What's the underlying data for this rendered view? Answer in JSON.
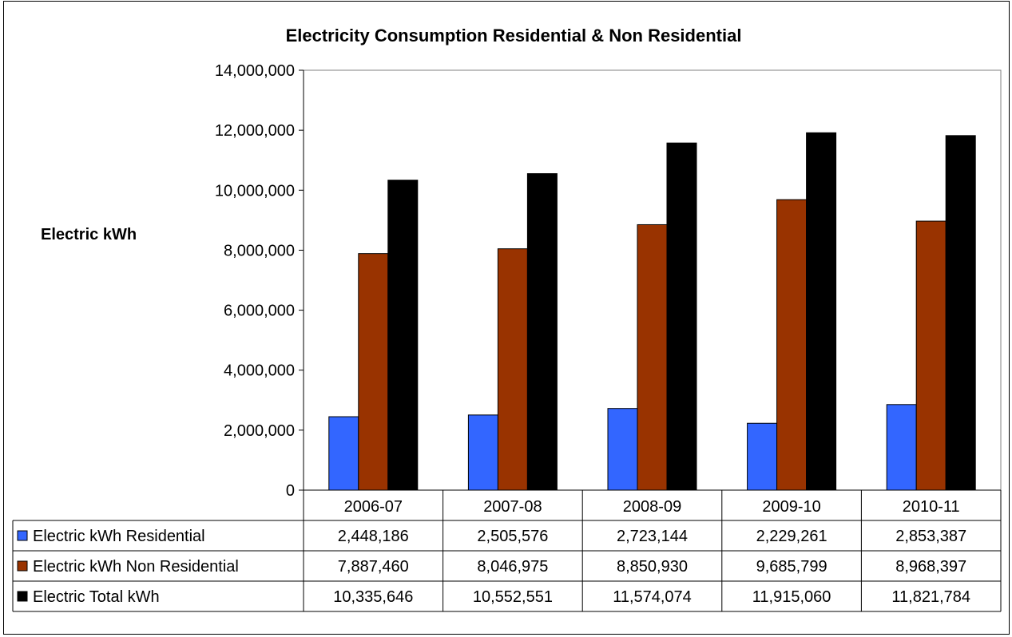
{
  "chart_data": {
    "type": "bar",
    "title": "Electricity Consumption Residential & Non Residential",
    "ylabel": "Electric kWh",
    "xlabel": "",
    "ylim": [
      0,
      14000000
    ],
    "yticks": [
      0,
      2000000,
      4000000,
      6000000,
      8000000,
      10000000,
      12000000,
      14000000
    ],
    "ytick_labels": [
      "0",
      "2,000,000",
      "4,000,000",
      "6,000,000",
      "8,000,000",
      "10,000,000",
      "12,000,000",
      "14,000,000"
    ],
    "categories": [
      "2006-07",
      "2007-08",
      "2008-09",
      "2009-10",
      "2010-11"
    ],
    "series": [
      {
        "name": "Electric kWh Residential",
        "color": "#3366ff",
        "values": [
          2448186,
          2505576,
          2723144,
          2229261,
          2853387
        ],
        "labels": [
          "2,448,186",
          "2,505,576",
          "2,723,144",
          "2,229,261",
          "2,853,387"
        ]
      },
      {
        "name": "Electric kWh Non Residential",
        "color": "#993300",
        "values": [
          7887460,
          8046975,
          8850930,
          9685799,
          8968397
        ],
        "labels": [
          "7,887,460",
          "8,046,975",
          "8,850,930",
          "9,685,799",
          "8,968,397"
        ]
      },
      {
        "name": "Electric Total kWh",
        "color": "#000000",
        "values": [
          10335646,
          10552551,
          11574074,
          11915060,
          11821784
        ],
        "labels": [
          "10,335,646",
          "10,552,551",
          "11,574,074",
          "11,915,060",
          "11,821,784"
        ]
      }
    ],
    "grid": false,
    "legend": "data-table"
  }
}
